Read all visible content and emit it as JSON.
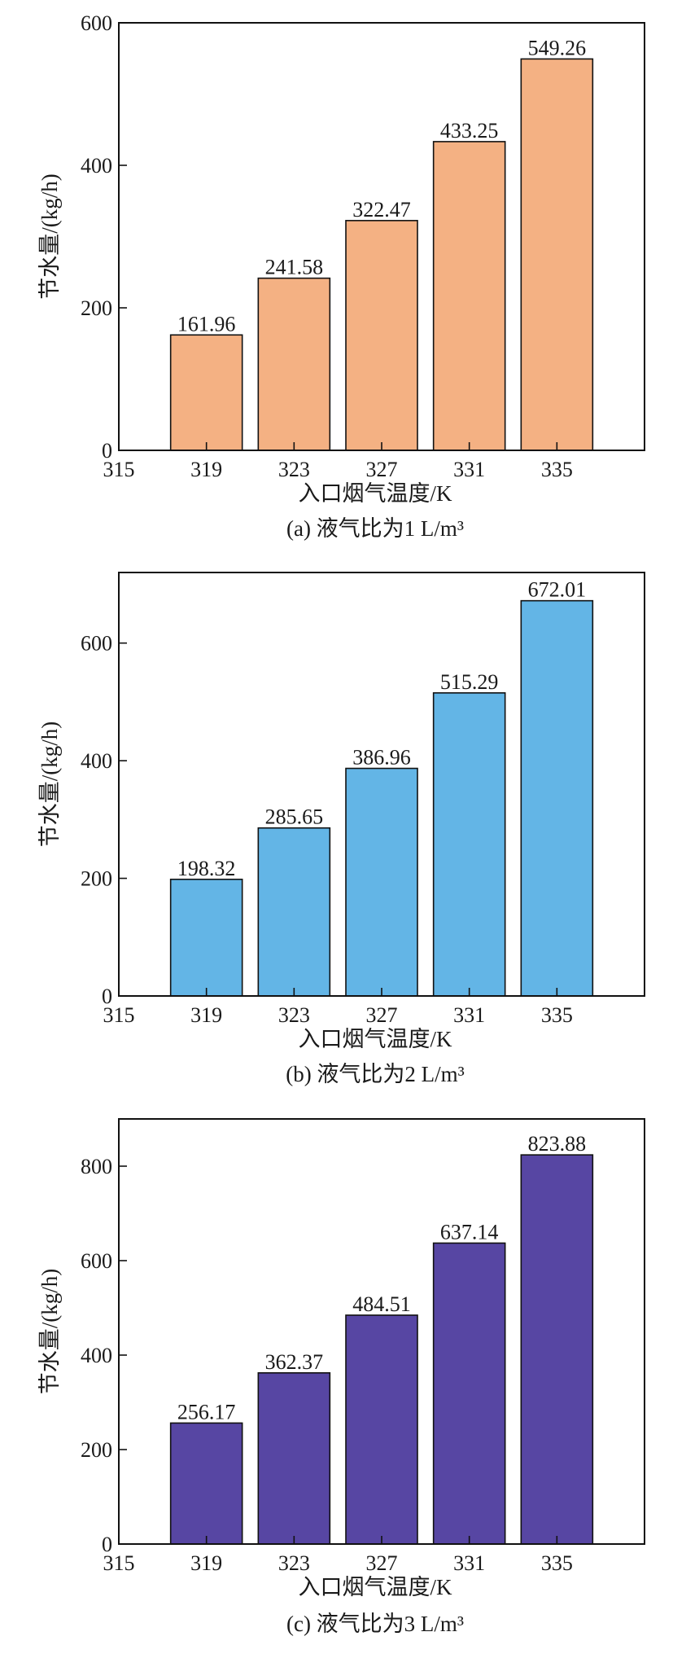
{
  "chart_data": [
    {
      "type": "bar",
      "caption": "(a) 液气比为1 L/m³",
      "xlabel": "入口烟气温度/K",
      "ylabel": "节水量/(kg/h)",
      "xlim": [
        315,
        339
      ],
      "x_ticks": [
        315,
        319,
        323,
        327,
        331,
        335
      ],
      "ylim": [
        0,
        600
      ],
      "y_ticks": [
        0,
        200,
        400,
        600
      ],
      "x": [
        319,
        323,
        327,
        331,
        335
      ],
      "values": [
        161.96,
        241.58,
        322.47,
        433.25,
        549.26
      ],
      "value_labels": [
        "161.96",
        "241.58",
        "322.47",
        "433.25",
        "549.26"
      ],
      "bar_color": "#F4B183",
      "grid": false
    },
    {
      "type": "bar",
      "caption": "(b) 液气比为2 L/m³",
      "xlabel": "入口烟气温度/K",
      "ylabel": "节水量/(kg/h)",
      "xlim": [
        315,
        339
      ],
      "x_ticks": [
        315,
        319,
        323,
        327,
        331,
        335
      ],
      "ylim": [
        0,
        720
      ],
      "y_ticks": [
        0,
        200,
        400,
        600
      ],
      "x": [
        319,
        323,
        327,
        331,
        335
      ],
      "values": [
        198.32,
        285.65,
        386.96,
        515.29,
        672.01
      ],
      "value_labels": [
        "198.32",
        "285.65",
        "386.96",
        "515.29",
        "672.01"
      ],
      "bar_color": "#63B5E6",
      "grid": false
    },
    {
      "type": "bar",
      "caption": "(c) 液气比为3 L/m³",
      "xlabel": "入口烟气温度/K",
      "ylabel": "节水量/(kg/h)",
      "xlim": [
        315,
        339
      ],
      "x_ticks": [
        315,
        319,
        323,
        327,
        331,
        335
      ],
      "ylim": [
        0,
        900
      ],
      "y_ticks": [
        0,
        200,
        400,
        600,
        800
      ],
      "x": [
        319,
        323,
        327,
        331,
        335
      ],
      "values": [
        256.17,
        362.37,
        484.51,
        637.14,
        823.88
      ],
      "value_labels": [
        "256.17",
        "362.37",
        "484.51",
        "637.14",
        "823.88"
      ],
      "bar_color": "#5746A3",
      "grid": false
    }
  ]
}
